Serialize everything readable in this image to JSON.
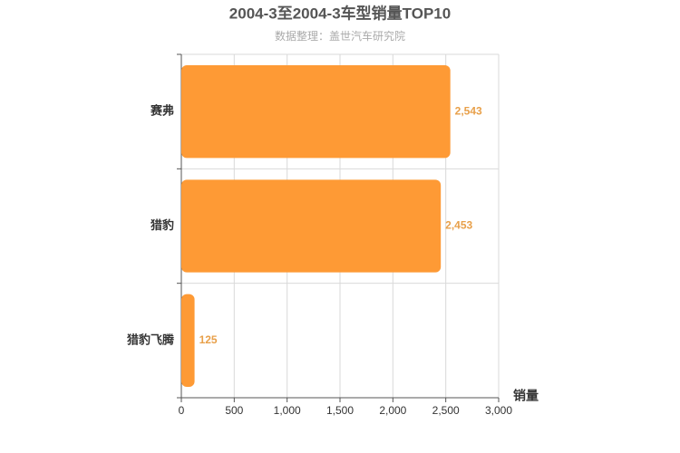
{
  "chart_data": {
    "type": "bar",
    "orientation": "horizontal",
    "title": "2004-3至2004-3车型销量TOP10",
    "subtitle": "数据整理：盖世汽车研究院",
    "x_label": "销量",
    "categories": [
      "赛弗",
      "猎豹",
      "猎豹飞腾"
    ],
    "values": [
      2543,
      2453,
      125
    ],
    "value_labels": [
      "2,543",
      "2,453",
      "125"
    ],
    "color": "#fe9a35",
    "xlim": [
      0,
      3000
    ],
    "xticks": [
      0,
      500,
      {
        "value": 1000,
        "label": "1,000"
      },
      {
        "value": 1500,
        "label": "1,500"
      },
      {
        "value": 2000,
        "label": "2,000"
      },
      {
        "value": 2500,
        "label": "2,500"
      },
      {
        "value": 3000,
        "label": "3,000"
      }
    ],
    "grid": true
  }
}
